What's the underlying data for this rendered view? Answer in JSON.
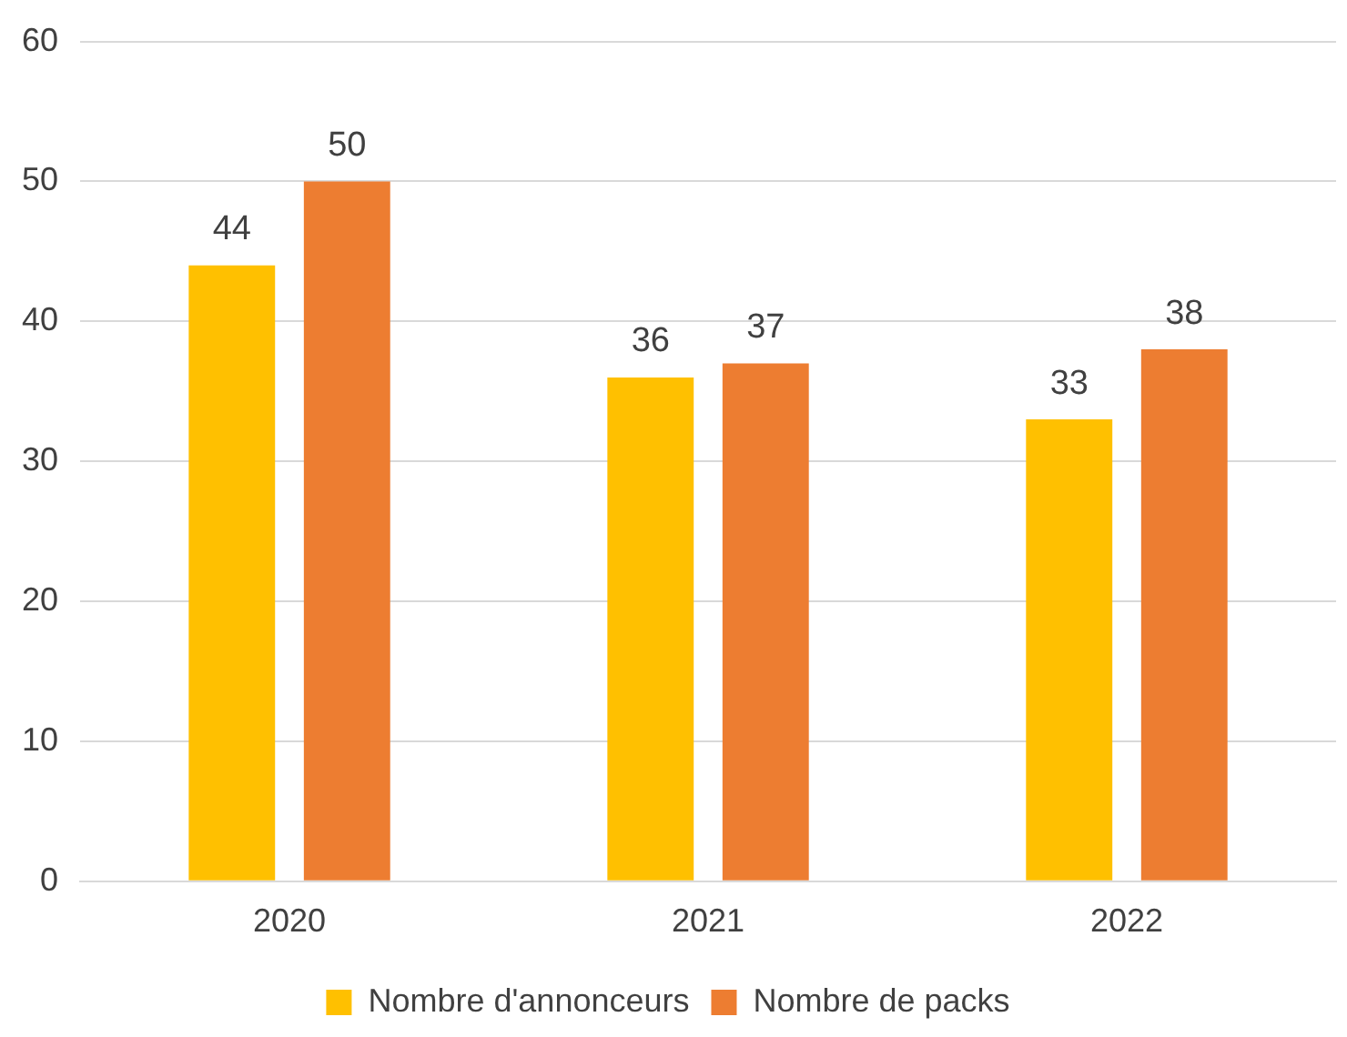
{
  "chart_data": {
    "type": "bar",
    "categories": [
      "2020",
      "2021",
      "2022"
    ],
    "series": [
      {
        "name": "Nombre d'annonceurs",
        "color": "#ffc000",
        "values": [
          44,
          36,
          33
        ]
      },
      {
        "name": "Nombre de packs",
        "color": "#ed7d31",
        "values": [
          50,
          37,
          38
        ]
      }
    ],
    "ylim": [
      0,
      60
    ],
    "yticks": [
      0,
      10,
      20,
      30,
      40,
      50,
      60
    ],
    "grid": "y",
    "legend": "bottom",
    "data_labels": true
  }
}
